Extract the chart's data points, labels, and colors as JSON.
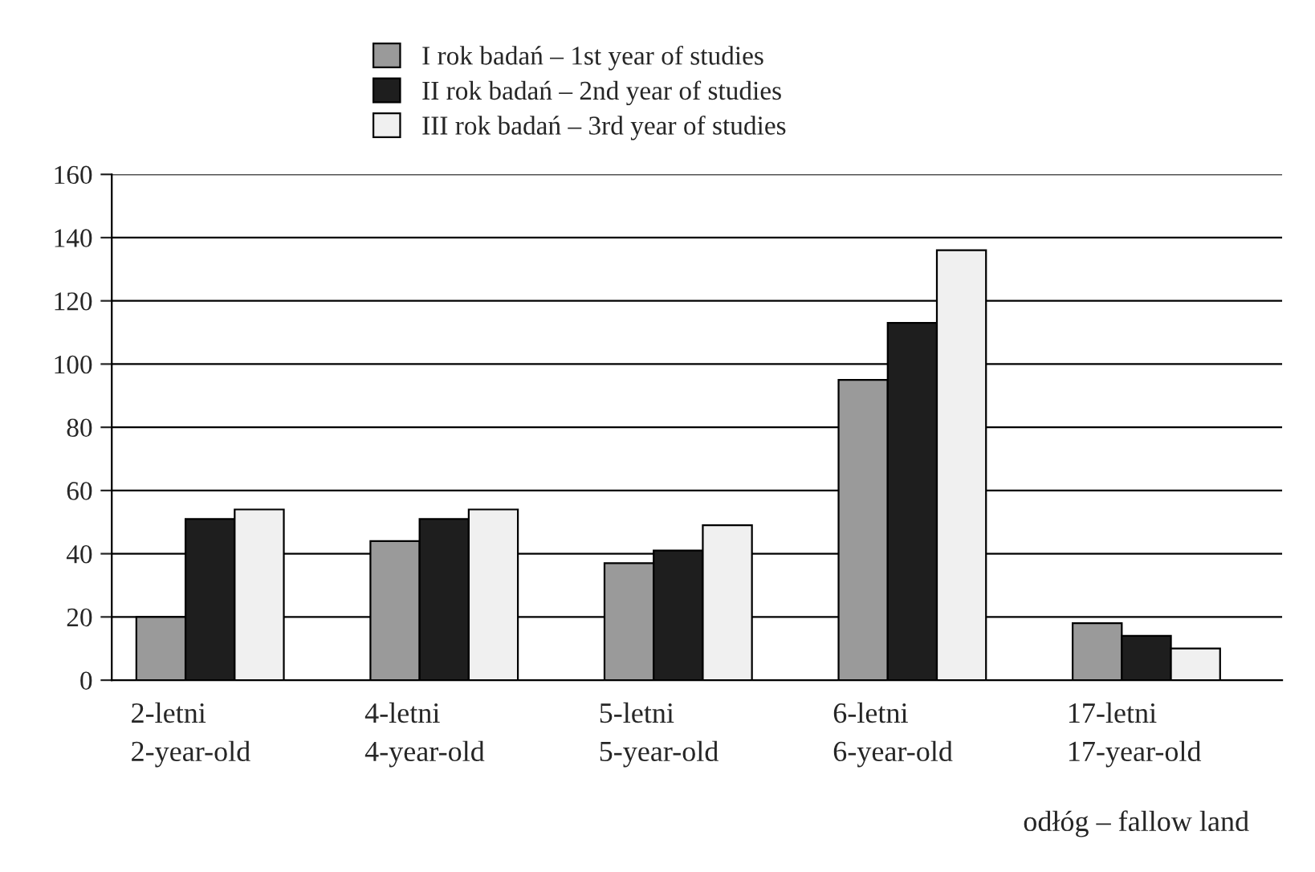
{
  "chart_data": {
    "type": "bar",
    "categories": [
      "2-letni\n2-year-old",
      "4-letni\n4-year-old",
      "5-letni\n5-year-old",
      "6-letni\n6-year-old",
      "17-letni\n17-year-old"
    ],
    "series": [
      {
        "name": "I rok badań – 1st year of studies",
        "color": "#9a9a9a",
        "values": [
          20,
          44,
          37,
          95,
          18
        ]
      },
      {
        "name": "II rok badań – 2nd year of studies",
        "color": "#1e1e1e",
        "values": [
          51,
          51,
          41,
          113,
          14
        ]
      },
      {
        "name": "III rok badań – 3rd year of studies",
        "color": "#f0f0f0",
        "values": [
          54,
          54,
          49,
          136,
          10
        ]
      }
    ],
    "ylim": [
      0,
      160
    ],
    "yticks": [
      0,
      20,
      40,
      60,
      80,
      100,
      120,
      140,
      160
    ],
    "grid": "y",
    "legend": "top",
    "annotations": [
      "odłóg – fallow land"
    ]
  }
}
